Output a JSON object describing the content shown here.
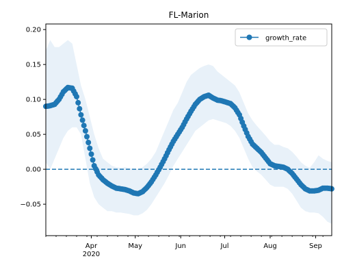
{
  "chart_data": {
    "type": "line",
    "title": "FL-Marion",
    "xlabel": "",
    "ylabel": "",
    "x_range": [
      "2020-03-01",
      "2020-09-12"
    ],
    "ylim": [
      -0.095,
      0.208
    ],
    "y_ticks": [
      -0.05,
      0.0,
      0.05,
      0.1,
      0.15,
      0.2
    ],
    "y_tick_labels": [
      "−0.05",
      "0.00",
      "0.05",
      "0.10",
      "0.15",
      "0.20"
    ],
    "x_ticks": [
      {
        "date": "2020-04-01",
        "label": "Apr",
        "sublabel": "2020"
      },
      {
        "date": "2020-05-01",
        "label": "May",
        "sublabel": ""
      },
      {
        "date": "2020-06-01",
        "label": "Jun",
        "sublabel": ""
      },
      {
        "date": "2020-07-01",
        "label": "Jul",
        "sublabel": ""
      },
      {
        "date": "2020-08-01",
        "label": "Aug",
        "sublabel": ""
      },
      {
        "date": "2020-09-01",
        "label": "Sep",
        "sublabel": ""
      }
    ],
    "grid": false,
    "legend": {
      "position": "top-right",
      "entries": [
        "growth_rate"
      ]
    },
    "reference_line": {
      "y": 0,
      "style": "dashed",
      "color": "#1f77b4"
    },
    "colors": {
      "series": "#1f77b4",
      "band": "#e8f1f9"
    },
    "series": [
      {
        "name": "growth_rate",
        "marker": "circle",
        "points": [
          {
            "x": "2020-03-01",
            "y": 0.09,
            "lo": 0.01,
            "hi": 0.17
          },
          {
            "x": "2020-03-04",
            "y": 0.091,
            "lo": 0.0,
            "hi": 0.185
          },
          {
            "x": "2020-03-07",
            "y": 0.093,
            "lo": 0.015,
            "hi": 0.175
          },
          {
            "x": "2020-03-10",
            "y": 0.1,
            "lo": 0.03,
            "hi": 0.175
          },
          {
            "x": "2020-03-13",
            "y": 0.111,
            "lo": 0.045,
            "hi": 0.18
          },
          {
            "x": "2020-03-16",
            "y": 0.117,
            "lo": 0.055,
            "hi": 0.185
          },
          {
            "x": "2020-03-19",
            "y": 0.116,
            "lo": 0.06,
            "hi": 0.18
          },
          {
            "x": "2020-03-22",
            "y": 0.104,
            "lo": 0.06,
            "hi": 0.15
          },
          {
            "x": "2020-03-25",
            "y": 0.078,
            "lo": 0.05,
            "hi": 0.12
          },
          {
            "x": "2020-03-28",
            "y": 0.055,
            "lo": 0.015,
            "hi": 0.1
          },
          {
            "x": "2020-03-31",
            "y": 0.03,
            "lo": -0.02,
            "hi": 0.075
          },
          {
            "x": "2020-04-03",
            "y": 0.005,
            "lo": -0.04,
            "hi": 0.05
          },
          {
            "x": "2020-04-06",
            "y": -0.008,
            "lo": -0.05,
            "hi": 0.03
          },
          {
            "x": "2020-04-09",
            "y": -0.015,
            "lo": -0.055,
            "hi": 0.015
          },
          {
            "x": "2020-04-12",
            "y": -0.02,
            "lo": -0.06,
            "hi": 0.01
          },
          {
            "x": "2020-04-15",
            "y": -0.024,
            "lo": -0.06,
            "hi": 0.005
          },
          {
            "x": "2020-04-18",
            "y": -0.027,
            "lo": -0.062,
            "hi": 0.003
          },
          {
            "x": "2020-04-21",
            "y": -0.028,
            "lo": -0.062,
            "hi": 0.002
          },
          {
            "x": "2020-04-24",
            "y": -0.029,
            "lo": -0.063,
            "hi": 0.003
          },
          {
            "x": "2020-04-27",
            "y": -0.031,
            "lo": -0.064,
            "hi": 0.002
          },
          {
            "x": "2020-04-30",
            "y": -0.034,
            "lo": -0.066,
            "hi": 0.0
          },
          {
            "x": "2020-05-03",
            "y": -0.035,
            "lo": -0.066,
            "hi": 0.0
          },
          {
            "x": "2020-05-06",
            "y": -0.032,
            "lo": -0.063,
            "hi": 0.003
          },
          {
            "x": "2020-05-09",
            "y": -0.026,
            "lo": -0.058,
            "hi": 0.008
          },
          {
            "x": "2020-05-12",
            "y": -0.018,
            "lo": -0.05,
            "hi": 0.015
          },
          {
            "x": "2020-05-15",
            "y": -0.008,
            "lo": -0.04,
            "hi": 0.025
          },
          {
            "x": "2020-05-18",
            "y": 0.003,
            "lo": -0.03,
            "hi": 0.04
          },
          {
            "x": "2020-05-21",
            "y": 0.015,
            "lo": -0.02,
            "hi": 0.055
          },
          {
            "x": "2020-05-24",
            "y": 0.028,
            "lo": -0.008,
            "hi": 0.07
          },
          {
            "x": "2020-05-27",
            "y": 0.04,
            "lo": 0.005,
            "hi": 0.085
          },
          {
            "x": "2020-05-30",
            "y": 0.05,
            "lo": 0.015,
            "hi": 0.095
          },
          {
            "x": "2020-06-02",
            "y": 0.06,
            "lo": 0.025,
            "hi": 0.11
          },
          {
            "x": "2020-06-05",
            "y": 0.072,
            "lo": 0.035,
            "hi": 0.125
          },
          {
            "x": "2020-06-08",
            "y": 0.083,
            "lo": 0.045,
            "hi": 0.135
          },
          {
            "x": "2020-06-11",
            "y": 0.093,
            "lo": 0.055,
            "hi": 0.14
          },
          {
            "x": "2020-06-14",
            "y": 0.1,
            "lo": 0.06,
            "hi": 0.145
          },
          {
            "x": "2020-06-17",
            "y": 0.104,
            "lo": 0.065,
            "hi": 0.148
          },
          {
            "x": "2020-06-20",
            "y": 0.106,
            "lo": 0.07,
            "hi": 0.15
          },
          {
            "x": "2020-06-23",
            "y": 0.102,
            "lo": 0.072,
            "hi": 0.148
          },
          {
            "x": "2020-06-26",
            "y": 0.099,
            "lo": 0.07,
            "hi": 0.14
          },
          {
            "x": "2020-06-29",
            "y": 0.098,
            "lo": 0.068,
            "hi": 0.135
          },
          {
            "x": "2020-07-02",
            "y": 0.096,
            "lo": 0.066,
            "hi": 0.13
          },
          {
            "x": "2020-07-05",
            "y": 0.094,
            "lo": 0.062,
            "hi": 0.125
          },
          {
            "x": "2020-07-08",
            "y": 0.088,
            "lo": 0.055,
            "hi": 0.12
          },
          {
            "x": "2020-07-11",
            "y": 0.078,
            "lo": 0.045,
            "hi": 0.11
          },
          {
            "x": "2020-07-14",
            "y": 0.062,
            "lo": 0.03,
            "hi": 0.095
          },
          {
            "x": "2020-07-17",
            "y": 0.047,
            "lo": 0.015,
            "hi": 0.08
          },
          {
            "x": "2020-07-20",
            "y": 0.036,
            "lo": 0.003,
            "hi": 0.07
          },
          {
            "x": "2020-07-23",
            "y": 0.03,
            "lo": -0.003,
            "hi": 0.062
          },
          {
            "x": "2020-07-26",
            "y": 0.024,
            "lo": -0.008,
            "hi": 0.055
          },
          {
            "x": "2020-07-29",
            "y": 0.016,
            "lo": -0.015,
            "hi": 0.048
          },
          {
            "x": "2020-08-01",
            "y": 0.008,
            "lo": -0.022,
            "hi": 0.04
          },
          {
            "x": "2020-08-04",
            "y": 0.005,
            "lo": -0.025,
            "hi": 0.035
          },
          {
            "x": "2020-08-07",
            "y": 0.004,
            "lo": -0.025,
            "hi": 0.035
          },
          {
            "x": "2020-08-10",
            "y": 0.003,
            "lo": -0.025,
            "hi": 0.032
          },
          {
            "x": "2020-08-13",
            "y": 0.0,
            "lo": -0.028,
            "hi": 0.03
          },
          {
            "x": "2020-08-16",
            "y": -0.006,
            "lo": -0.035,
            "hi": 0.025
          },
          {
            "x": "2020-08-19",
            "y": -0.014,
            "lo": -0.045,
            "hi": 0.018
          },
          {
            "x": "2020-08-22",
            "y": -0.022,
            "lo": -0.055,
            "hi": 0.01
          },
          {
            "x": "2020-08-25",
            "y": -0.028,
            "lo": -0.06,
            "hi": 0.005
          },
          {
            "x": "2020-08-28",
            "y": -0.031,
            "lo": -0.062,
            "hi": 0.002
          },
          {
            "x": "2020-08-31",
            "y": -0.031,
            "lo": -0.062,
            "hi": 0.01
          },
          {
            "x": "2020-09-03",
            "y": -0.03,
            "lo": -0.063,
            "hi": 0.02
          },
          {
            "x": "2020-09-06",
            "y": -0.027,
            "lo": -0.068,
            "hi": 0.015
          },
          {
            "x": "2020-09-09",
            "y": -0.027,
            "lo": -0.075,
            "hi": 0.012
          },
          {
            "x": "2020-09-12",
            "y": -0.028,
            "lo": -0.078,
            "hi": 0.01
          }
        ]
      }
    ]
  }
}
